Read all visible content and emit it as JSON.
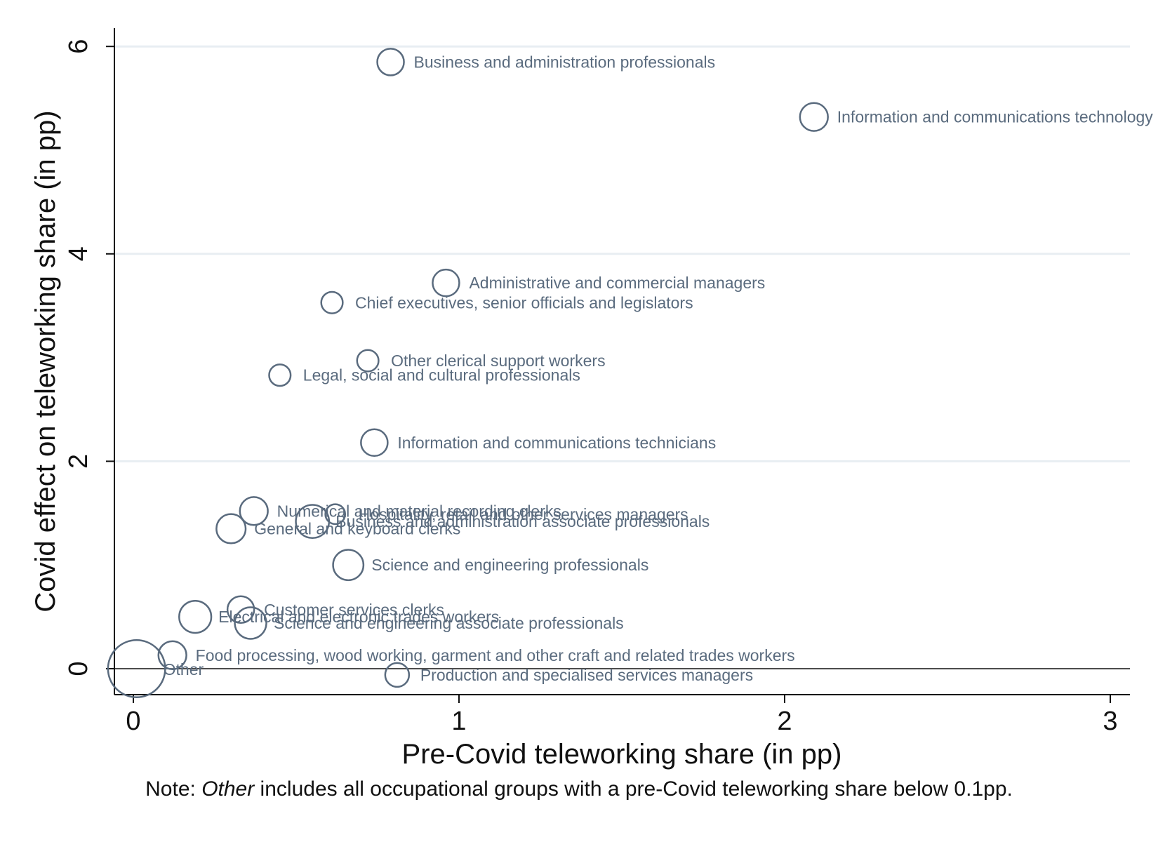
{
  "chart_data": {
    "type": "scatter",
    "title": "",
    "xlabel": "Pre-Covid teleworking share (in pp)",
    "ylabel": "Covid effect on teleworking share (in pp)",
    "xlim": [
      -0.05,
      3.05
    ],
    "ylim": [
      -0.35,
      6.3
    ],
    "xticks": [
      0,
      1,
      2,
      3
    ],
    "yticks": [
      0,
      2,
      4,
      6
    ],
    "grid": "horizontal",
    "marker": "hollow circle, size weighted",
    "color": "#5a6b7e",
    "points": [
      {
        "label": "Business and administration professionals",
        "x": 0.79,
        "y": 5.85,
        "size": 1.0
      },
      {
        "label": "Information and communications technology professionals",
        "x": 2.09,
        "y": 5.32,
        "size": 1.1
      },
      {
        "label": "Administrative and commercial managers",
        "x": 0.96,
        "y": 3.72,
        "size": 1.0
      },
      {
        "label": "Chief executives, senior officials and legislators",
        "x": 0.61,
        "y": 3.53,
        "size": 0.65
      },
      {
        "label": "Other clerical support workers",
        "x": 0.72,
        "y": 2.97,
        "size": 0.65
      },
      {
        "label": "Legal, social and cultural professionals",
        "x": 0.45,
        "y": 2.83,
        "size": 0.65
      },
      {
        "label": "Information and communications technicians",
        "x": 0.74,
        "y": 2.18,
        "size": 1.0
      },
      {
        "label": "Numerical and material recording clerks",
        "x": 0.37,
        "y": 1.52,
        "size": 1.1
      },
      {
        "label": "Hospitality, retail and other services managers",
        "x": 0.62,
        "y": 1.49,
        "size": 0.55
      },
      {
        "label": "Business and administration associate professionals",
        "x": 0.55,
        "y": 1.42,
        "size": 1.55
      },
      {
        "label": "General and keyboard clerks",
        "x": 0.3,
        "y": 1.35,
        "size": 1.2
      },
      {
        "label": "Science and engineering professionals",
        "x": 0.66,
        "y": 1.0,
        "size": 1.3
      },
      {
        "label": "Customer services clerks",
        "x": 0.33,
        "y": 0.57,
        "size": 1.0
      },
      {
        "label": "Electrical and electronic trades workers",
        "x": 0.19,
        "y": 0.5,
        "size": 1.45
      },
      {
        "label": "Science and engineering associate professionals",
        "x": 0.36,
        "y": 0.44,
        "size": 1.4
      },
      {
        "label": "Food processing, wood working, garment and other craft and related trades workers",
        "x": 0.12,
        "y": 0.13,
        "size": 1.1
      },
      {
        "label": "Other",
        "x": 0.01,
        "y": 0.0,
        "size": 4.6
      },
      {
        "label": "Production and specialised services managers",
        "x": 0.81,
        "y": -0.06,
        "size": 0.8
      }
    ],
    "note_prefix": "Note: ",
    "note_italic": "Other",
    "note_rest": " includes all occupational groups with a pre-Covid teleworking share below 0.1pp."
  }
}
